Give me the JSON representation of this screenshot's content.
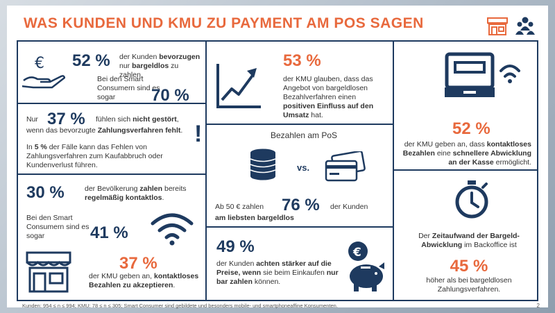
{
  "title": "WAS KUNDEN UND KMU ZU PAYMENT AM POS SAGEN",
  "colors": {
    "accent": "#e8693d",
    "navy": "#1e3a5f"
  },
  "p1": {
    "pct": "52 %",
    "text1": "der Kunden",
    "bold1": "bevorzugen",
    "text2": "nur",
    "bold2": "bargeldlos",
    "text3": "zu zahlen.",
    "sub": "Bei den Smart Consumern sind es sogar",
    "pct2": "70 %"
  },
  "p2": {
    "pre": "Nur",
    "pct": "37 %",
    "text1": "fühlen sich",
    "bold1": "nicht gestört",
    "text2": "wenn das bevorzugte",
    "bold2": "Zahlungsverfahren fehlt",
    "text3": "In",
    "bold3": "5 %",
    "text4": "der Fälle kann das Fehlen von Zahlungsverfahren zum Kaufabbruch oder Kundenverlust führen."
  },
  "p3": {
    "pct": "30 %",
    "text1": "der Bevölkerung",
    "bold1": "zahlen",
    "text2": "bereits",
    "bold2": "regelmäßig kontaktlos",
    "sub": "Bei den Smart Consumern sind es sogar",
    "pct2": "41 %",
    "pct3": "37 %",
    "text3": "der KMU geben an,",
    "bold3": "kontaktloses Bezahlen zu akzeptieren"
  },
  "p4": {
    "pct": "53 %",
    "text1": "der KMU glauben, dass das Angebot von bargeldlosen Bezahlverfahren einen",
    "bold1": "positiven Einfluss auf den Umsatz",
    "text2": "hat."
  },
  "p5": {
    "heading": "Bezahlen am PoS",
    "vs": "vs.",
    "pre": "Ab 50 € zahlen",
    "pct": "76 %",
    "post": "der Kunden",
    "bold": "am liebsten bargeldlos"
  },
  "p6": {
    "pct": "49 %",
    "text1": "der Kunden",
    "bold1": "achten stärker auf die Preise, wenn",
    "text2": "sie beim Einkaufen",
    "bold2": "nur bar zahlen",
    "text3": "können."
  },
  "p7": {
    "pct": "52 %",
    "text1": "der KMU geben an, dass",
    "bold1": "kontaktloses Bezahlen",
    "text2": "eine",
    "bold2": "schnellere Abwicklung an der Kasse",
    "text3": "ermöglicht."
  },
  "p8": {
    "text1": "Der",
    "bold1": "Zeitaufwand der Bargeld-Abwicklung",
    "text2": "im Backoffice ist",
    "pct": "45 %",
    "text3": "höher als bei bargeldlosen Zahlungsverfahren."
  },
  "footnote": "Kunden: 954 ≤ n ≤ 994; KMU: 78 ≤ n ≤ 305; Smart Consumer sind gebildete und besonders mobile- und smartphoneaffine Konsumenten.",
  "page_number": "2"
}
